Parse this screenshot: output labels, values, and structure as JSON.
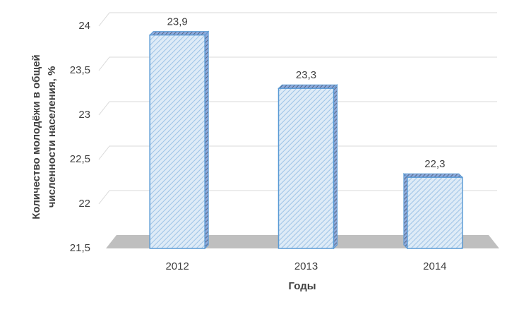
{
  "chart_data": {
    "type": "bar3d",
    "ylabel": [
      "Количество молодёжи в общей",
      "численности населения, %"
    ],
    "xlabel": "Годы",
    "categories": [
      "2012",
      "2013",
      "2014"
    ],
    "values": [
      23.9,
      23.3,
      22.3
    ],
    "value_labels": [
      "23,9",
      "23,3",
      "22,3"
    ],
    "color": "#5b9bd5",
    "ylim": [
      21.5,
      24
    ],
    "yticks": [
      {
        "value": 21.5,
        "label": "21,5"
      },
      22,
      {
        "value": 22.5,
        "label": "22,5"
      },
      23,
      {
        "value": 23.5,
        "label": "23,5"
      },
      24
    ],
    "grid": true
  }
}
